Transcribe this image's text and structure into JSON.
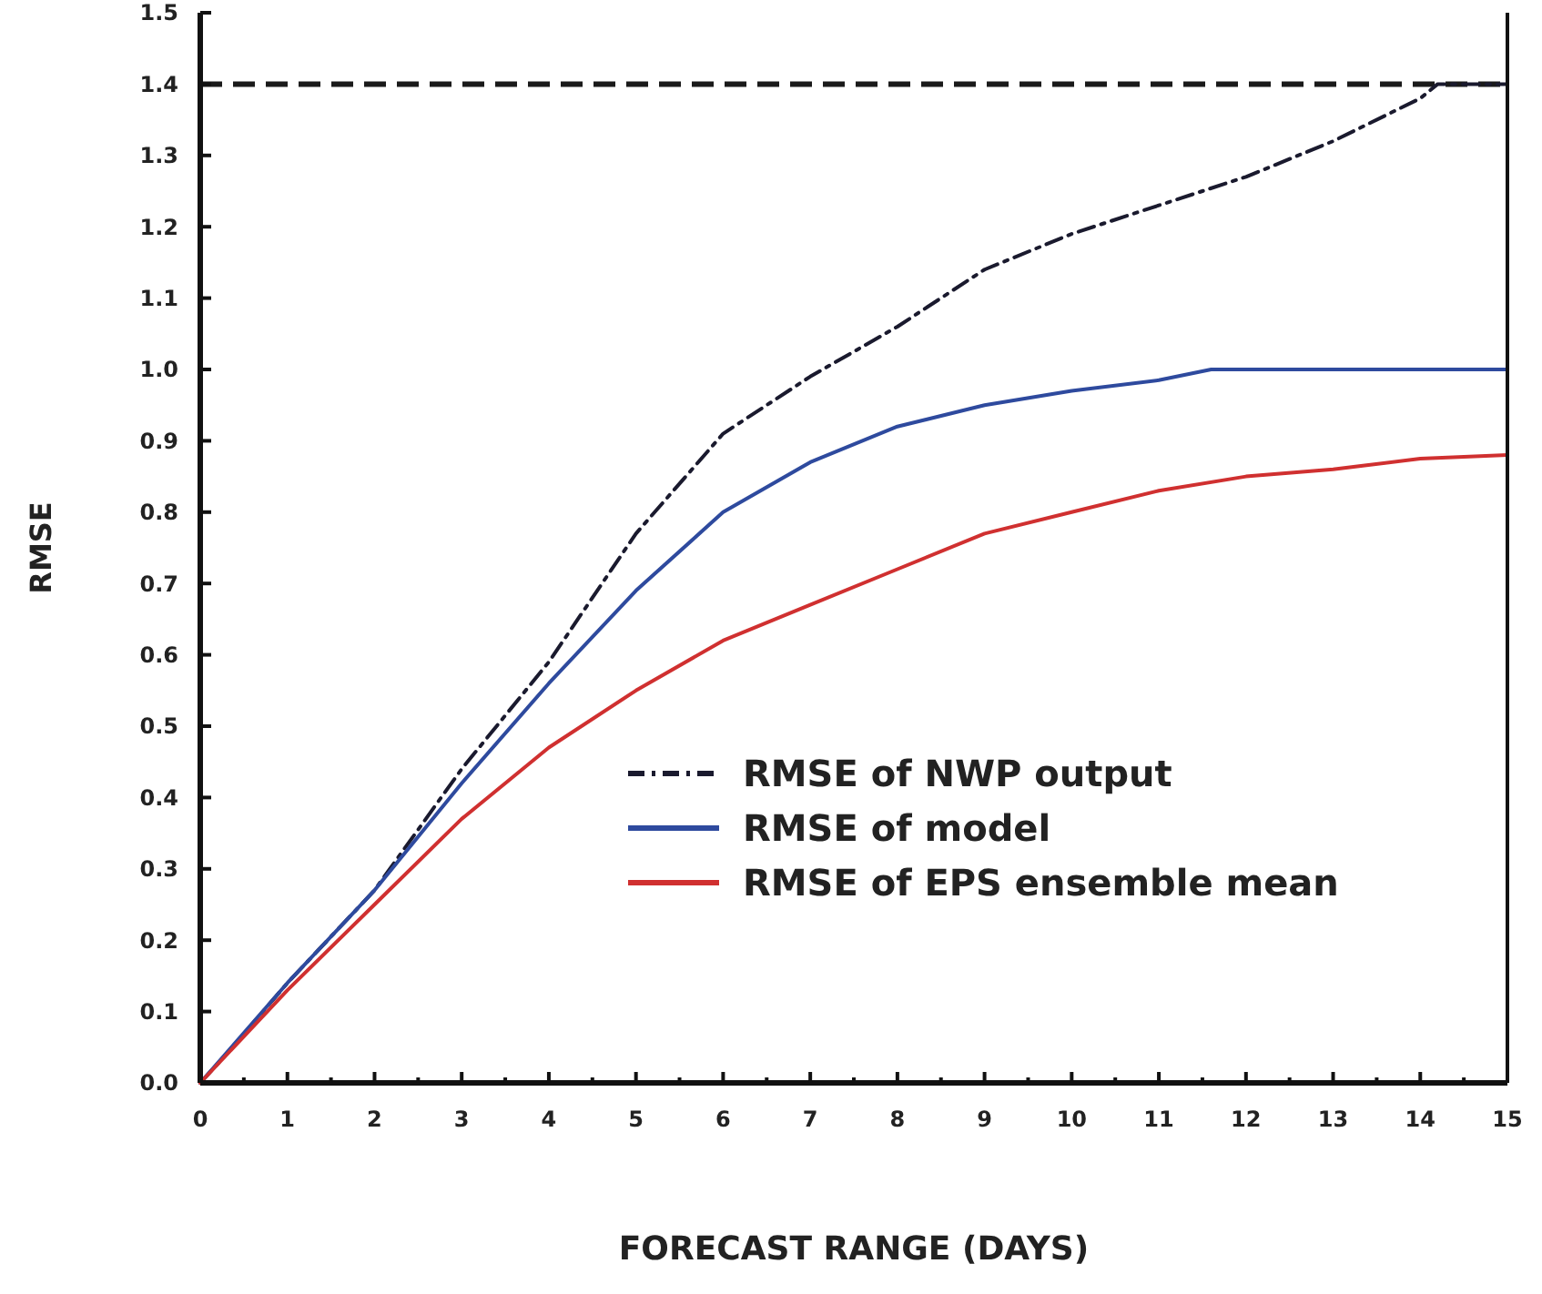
{
  "chart_data": {
    "type": "line",
    "xlabel": "FORECAST RANGE (DAYS)",
    "ylabel": "RMSE",
    "xlim": [
      0,
      15
    ],
    "ylim": [
      0,
      1.5
    ],
    "xticks": [
      0,
      {
        "value": 0.5,
        "label": null
      },
      1,
      {
        "value": 1.5,
        "label": null
      },
      2,
      {
        "value": 2.5,
        "label": null
      },
      3,
      {
        "value": 3.5,
        "label": null
      },
      4,
      {
        "value": 4.5,
        "label": null
      },
      5,
      {
        "value": 5.5,
        "label": null
      },
      6,
      {
        "value": 6.5,
        "label": null
      },
      7,
      {
        "value": 7.5,
        "label": null
      },
      8,
      {
        "value": 8.5,
        "label": null
      },
      9,
      {
        "value": 9.5,
        "label": null
      },
      10,
      {
        "value": 10.5,
        "label": null
      },
      11,
      {
        "value": 11.5,
        "label": null
      },
      12,
      {
        "value": 12.5,
        "label": null
      },
      13,
      {
        "value": 13.5,
        "label": null
      },
      14,
      {
        "value": 14.5,
        "label": null
      },
      15
    ],
    "yticks": [
      {
        "value": 0,
        "label": "0.0"
      },
      0.1,
      0.2,
      0.3,
      0.4,
      0.5,
      0.6,
      0.7,
      0.8,
      0.9,
      {
        "value": 1,
        "label": "1.0"
      },
      1.1,
      1.2,
      1.3,
      1.4,
      1.5
    ],
    "grid": false,
    "legend": "bottom right",
    "marker": "none",
    "ref_lines": [
      {
        "axis": "y",
        "value": 1.4,
        "color": "#1a1a1a",
        "line_style": "dashed"
      }
    ],
    "series": [
      {
        "name": "RMSE of NWP output",
        "color": "#1a1a2e",
        "line_style": "dashed",
        "x": [
          0,
          0.3,
          1,
          2,
          3,
          4,
          5,
          6,
          7,
          8,
          9,
          10,
          11,
          12,
          13,
          14,
          14.2,
          15
        ],
        "values": [
          0,
          0.04,
          0.14,
          0.27,
          0.44,
          0.59,
          0.77,
          0.91,
          0.99,
          1.06,
          1.14,
          1.19,
          1.23,
          1.27,
          1.32,
          1.38,
          1.4,
          1.4
        ]
      },
      {
        "name": "RMSE of model",
        "color": "#2e4a9e",
        "line_style": "solid",
        "x": [
          0,
          1,
          2,
          3,
          4,
          5,
          6,
          7,
          8,
          9,
          10,
          11,
          11.6,
          15
        ],
        "values": [
          0,
          0.14,
          0.27,
          0.42,
          0.56,
          0.69,
          0.8,
          0.87,
          0.92,
          0.95,
          0.97,
          0.985,
          1.0,
          1.0
        ]
      },
      {
        "name": "RMSE of EPS ensemble mean",
        "color": "#d03030",
        "line_style": "solid",
        "x": [
          0,
          1,
          2,
          3,
          4,
          5,
          6,
          7,
          8,
          9,
          10,
          11,
          12,
          13,
          14,
          15
        ],
        "values": [
          0,
          0.13,
          0.25,
          0.37,
          0.47,
          0.55,
          0.62,
          0.67,
          0.72,
          0.77,
          0.8,
          0.83,
          0.85,
          0.86,
          0.875,
          0.88
        ]
      }
    ]
  }
}
